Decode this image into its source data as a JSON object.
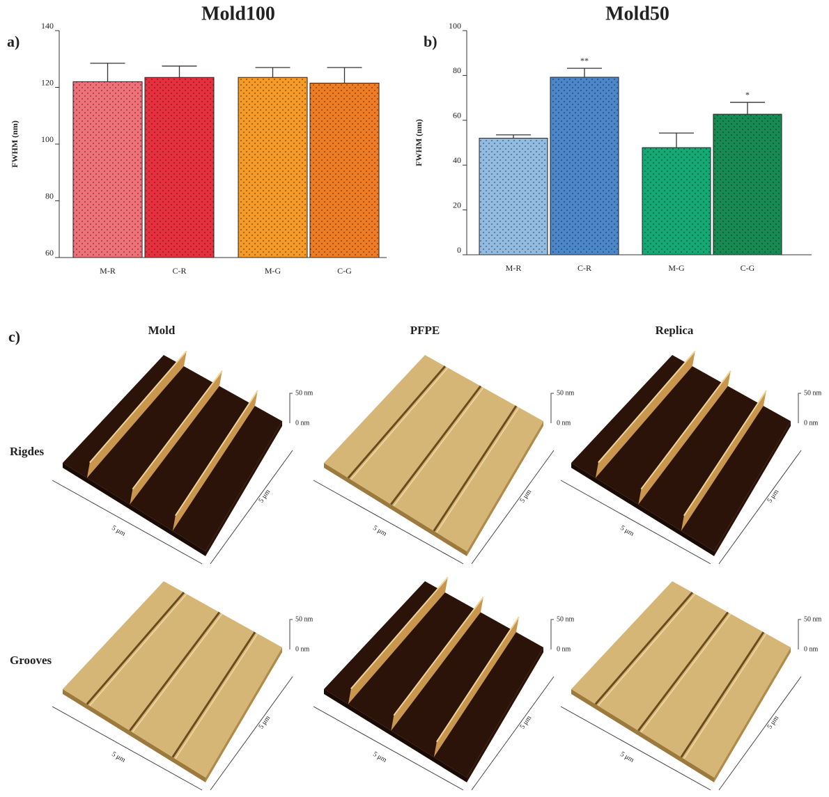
{
  "chart_data": [
    {
      "type": "bar",
      "title": "Mold100",
      "panel_label": "a)",
      "ylabel": "FWHM (nm)",
      "categories": [
        "M-R",
        "C-R",
        "M-G",
        "C-G"
      ],
      "values": [
        122,
        123.5,
        123.5,
        121.5
      ],
      "errors": [
        6.5,
        4,
        3.5,
        5.5
      ],
      "colors": [
        "#f07078",
        "#e8303c",
        "#f59a22",
        "#f07c22"
      ],
      "ylim": [
        60,
        140
      ],
      "yticks": [
        60,
        80,
        100,
        120,
        140
      ]
    },
    {
      "type": "bar",
      "title": "Mold50",
      "panel_label": "b)",
      "ylabel": "FWHM (nm)",
      "categories": [
        "M-R",
        "C-R",
        "M-G",
        "C-G"
      ],
      "values": [
        52,
        79.2,
        47.8,
        62.7
      ],
      "errors": [
        1.5,
        4,
        6.5,
        5.3
      ],
      "annotations": [
        null,
        "**",
        null,
        "*"
      ],
      "colors": [
        "#92bbe2",
        "#4a86c8",
        "#12aa72",
        "#178a52"
      ],
      "ylim": [
        0,
        100
      ],
      "yticks": [
        0,
        20,
        40,
        60,
        80,
        100
      ]
    }
  ],
  "afm": {
    "panel_label": "c)",
    "columns": [
      "Mold",
      "PFPE",
      "Replica"
    ],
    "rows": [
      "Rigdes",
      "Grooves"
    ],
    "images": [
      [
        {
          "z_top": "50 nm",
          "z_bottom": "0 nm",
          "x": "5 μm",
          "y": "5 μm"
        },
        {
          "z_top": "50 nm",
          "z_bottom": "0 nm",
          "x": "5 μm",
          "y": "5 μm"
        },
        {
          "z_top": "50 nm",
          "z_bottom": "0 nm",
          "x": "5 μm",
          "y": "5 μm"
        }
      ],
      [
        {
          "z_top": "50 nm",
          "z_bottom": "0 nm",
          "x": "5 μm",
          "y": "5 μm"
        },
        {
          "z_top": "50 nm",
          "z_bottom": "0 nm",
          "x": "5 μm",
          "y": "5 μm"
        },
        {
          "z_top": "50 nm",
          "z_bottom": "0 nm",
          "x": "5 μm",
          "y": "5 μm"
        }
      ]
    ]
  }
}
